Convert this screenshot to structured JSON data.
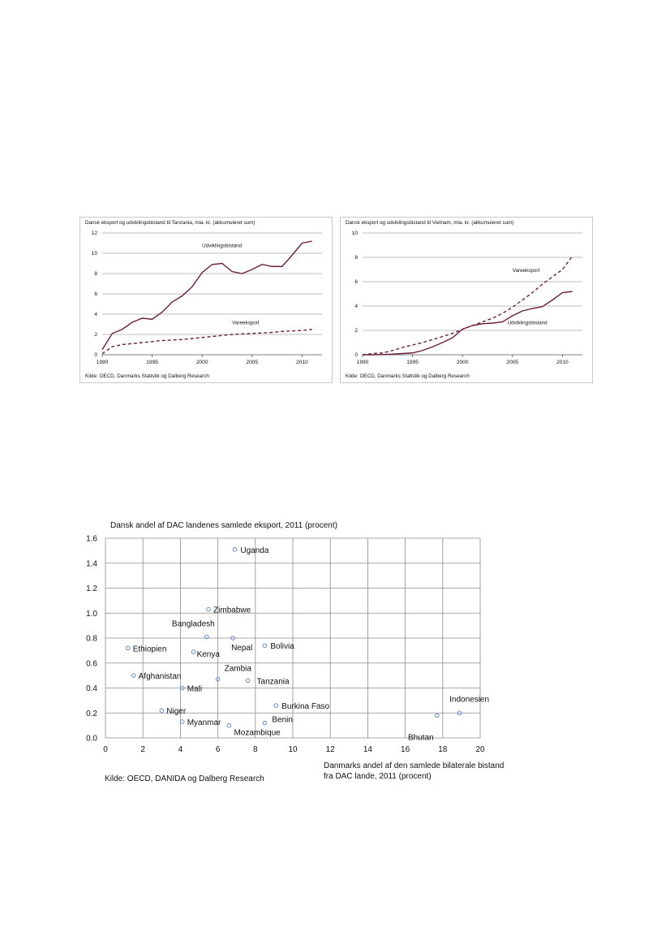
{
  "chart_data": [
    {
      "type": "line",
      "title": "Dansk eksport og udviklingsbistand til Tanzania, mia. kr. (akkumuleret sum)",
      "source": "Kilde: OECD, Danmarks Statistik og Dalberg Research",
      "xlim": [
        1990,
        2012
      ],
      "ylim": [
        0,
        12
      ],
      "xticks": [
        1990,
        1995,
        2000,
        2005,
        2010
      ],
      "yticks": [
        0,
        2,
        4,
        6,
        8,
        10,
        12
      ],
      "grid": true,
      "x": [
        1990,
        1991,
        1992,
        1993,
        1994,
        1995,
        1996,
        1997,
        1998,
        1999,
        2000,
        2001,
        2002,
        2003,
        2004,
        2005,
        2006,
        2007,
        2008,
        2009,
        2010,
        2011
      ],
      "series": [
        {
          "name": "Udviklingsbistand",
          "style": "solid",
          "color": "#6b1f3f",
          "values": [
            0.5,
            2.1,
            2.5,
            3.2,
            3.6,
            3.5,
            4.2,
            5.2,
            5.8,
            6.7,
            8.1,
            8.9,
            9.0,
            8.2,
            8.0,
            8.4,
            8.9,
            8.7,
            8.7,
            9.8,
            11.0,
            11.2
          ]
        },
        {
          "name": "Vareeksport",
          "style": "dashed",
          "color": "#6b1f3f",
          "values": [
            0.1,
            0.8,
            1.0,
            1.1,
            1.2,
            1.3,
            1.4,
            1.45,
            1.5,
            1.6,
            1.7,
            1.8,
            1.9,
            2.0,
            2.05,
            2.1,
            2.15,
            2.2,
            2.3,
            2.35,
            2.4,
            2.5
          ]
        }
      ]
    },
    {
      "type": "line",
      "title": "Dansk eksport og udviklingsbistand til Vietnam, mia. kr. (akkumuleret sum)",
      "source": "Kilde: OECD, Danmarks Statistik og Dalberg Research",
      "xlim": [
        1990,
        2012
      ],
      "ylim": [
        0,
        10
      ],
      "xticks": [
        1990,
        1995,
        2000,
        2005,
        2010
      ],
      "yticks": [
        0,
        2,
        4,
        6,
        8,
        10
      ],
      "grid": true,
      "x": [
        1990,
        1991,
        1992,
        1993,
        1994,
        1995,
        1996,
        1997,
        1998,
        1999,
        2000,
        2001,
        2002,
        2003,
        2004,
        2005,
        2006,
        2007,
        2008,
        2009,
        2010,
        2011
      ],
      "series": [
        {
          "name": "Vareeksport",
          "style": "dashed",
          "color": "#6b1f3f",
          "values": [
            0.0,
            0.1,
            0.15,
            0.35,
            0.6,
            0.8,
            1.0,
            1.25,
            1.5,
            1.75,
            2.1,
            2.4,
            2.7,
            3.0,
            3.4,
            3.9,
            4.5,
            5.1,
            5.8,
            6.4,
            7.0,
            8.1
          ]
        },
        {
          "name": "Udviklingsbistand",
          "style": "solid",
          "color": "#6b1f3f",
          "values": [
            0.0,
            0.0,
            0.02,
            0.05,
            0.1,
            0.15,
            0.35,
            0.65,
            1.0,
            1.4,
            2.1,
            2.4,
            2.55,
            2.6,
            2.7,
            3.2,
            3.6,
            3.8,
            3.95,
            4.5,
            5.1,
            5.2
          ]
        }
      ]
    },
    {
      "type": "scatter",
      "title": "Dansk andel af DAC landenes samlede eksport, 2011 (procent)",
      "xlabel": "Danmarks andel af den samlede bilaterale bistand fra DAC lande, 2011 (procent)",
      "source": "Kilde: OECD, DANIDA og Dalberg Research",
      "xlim": [
        0,
        20
      ],
      "ylim": [
        0,
        1.6
      ],
      "xticks": [
        0,
        2,
        4,
        6,
        8,
        10,
        12,
        14,
        16,
        18,
        20
      ],
      "yticks": [
        "0.0",
        "0.2",
        "0.4",
        "0.6",
        "0.8",
        "1.0",
        "1.2",
        "1.4",
        "1.6"
      ],
      "grid": true,
      "marker_color": "#5b7fc7",
      "points": [
        {
          "label": "Uganda",
          "x": 6.9,
          "y": 1.51
        },
        {
          "label": "Zimbabwe",
          "x": 5.5,
          "y": 1.03
        },
        {
          "label": "Bangladesh",
          "x": 5.4,
          "y": 0.81
        },
        {
          "label": "Nepal",
          "x": 6.8,
          "y": 0.8
        },
        {
          "label": "Bolivia",
          "x": 8.5,
          "y": 0.74
        },
        {
          "label": "Ethiopien",
          "x": 1.2,
          "y": 0.72
        },
        {
          "label": "Kenya",
          "x": 4.7,
          "y": 0.69
        },
        {
          "label": "Afghanistan",
          "x": 1.5,
          "y": 0.5
        },
        {
          "label": "Zambia",
          "x": 6.0,
          "y": 0.47
        },
        {
          "label": "Tanzania",
          "x": 7.6,
          "y": 0.46
        },
        {
          "label": "Mali",
          "x": 4.1,
          "y": 0.4
        },
        {
          "label": "Burkina Faso",
          "x": 9.1,
          "y": 0.26
        },
        {
          "label": "Niger",
          "x": 3.0,
          "y": 0.22
        },
        {
          "label": "Indonesien",
          "x": 18.9,
          "y": 0.2
        },
        {
          "label": "Bhutan",
          "x": 17.7,
          "y": 0.18
        },
        {
          "label": "Myanmar",
          "x": 4.1,
          "y": 0.13
        },
        {
          "label": "Benin",
          "x": 8.5,
          "y": 0.12
        },
        {
          "label": "Mozambique",
          "x": 6.6,
          "y": 0.1
        }
      ]
    }
  ]
}
